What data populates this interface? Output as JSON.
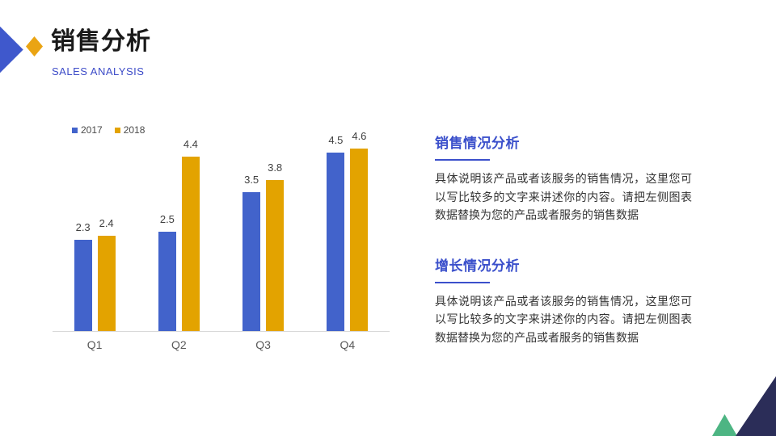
{
  "header": {
    "title": "销售分析",
    "subtitle": "SALES ANALYSIS",
    "accent_blue": "#3f58cc",
    "accent_orange": "#eaa413"
  },
  "chart_data": {
    "type": "bar",
    "categories": [
      "Q1",
      "Q2",
      "Q3",
      "Q4"
    ],
    "series": [
      {
        "name": "2017",
        "color": "#4263cb",
        "values": [
          2.3,
          2.5,
          3.5,
          4.5
        ]
      },
      {
        "name": "2018",
        "color": "#e3a300",
        "values": [
          2.4,
          4.4,
          3.8,
          4.6
        ]
      }
    ],
    "title": "",
    "xlabel": "",
    "ylabel": "",
    "ylim": [
      0,
      5.25
    ],
    "grid": false,
    "data_labels": true,
    "legend_position": "top-left",
    "axis_line_color": "#d9d9d9",
    "value_label_color": "#404040",
    "category_label_color": "#595959"
  },
  "sections": [
    {
      "heading": "销售情况分析",
      "body": "具体说明该产品或者该服务的销售情况，这里您可以写比较多的文字来讲述你的内容。请把左侧图表数据替换为您的产品或者服务的销售数据"
    },
    {
      "heading": "增长情况分析",
      "body": "具体说明该产品或者该服务的销售情况，这里您可以写比较多的文字来讲述你的内容。请把左侧图表数据替换为您的产品或者服务的销售数据"
    }
  ],
  "decor": {
    "navy_triangle": "#2b2d58",
    "green_triangle": "#4db583"
  }
}
